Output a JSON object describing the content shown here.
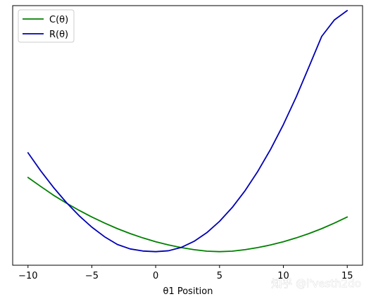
{
  "chart_data": {
    "type": "line",
    "title": "",
    "xlabel": "θ1 Position",
    "ylabel": "",
    "xlim": [
      -11.2,
      16.2
    ],
    "ylim": [
      -9,
      201
    ],
    "xticks": [
      -10,
      -5,
      0,
      5,
      10,
      15
    ],
    "xtick_labels": [
      "−10",
      "−5",
      "0",
      "5",
      "10",
      "15"
    ],
    "yticks_visible": false,
    "grid": false,
    "legend_position": "top-left",
    "series": [
      {
        "name": "C(θ)",
        "color": "#008000",
        "x": [
          -10,
          -9,
          -8,
          -7,
          -6,
          -5,
          -4,
          -3,
          -2,
          -1,
          0,
          1,
          2,
          3,
          4,
          5,
          6,
          7,
          8,
          9,
          10,
          11,
          12,
          13,
          14,
          15
        ],
        "y": [
          62,
          54.7,
          47.6,
          41.3,
          35.4,
          30,
          25.1,
          20.6,
          16.6,
          13.1,
          10,
          7.4,
          5.3,
          3.6,
          2.4,
          2,
          2.4,
          3.6,
          5.3,
          7.4,
          10,
          13.1,
          16.6,
          20.6,
          25.1,
          30
        ]
      },
      {
        "name": "R(θ)",
        "color": "#0000b4",
        "x": [
          -10,
          -9,
          -8,
          -7,
          -6,
          -5,
          -4,
          -3,
          -2,
          -1,
          0,
          1,
          2,
          3,
          4,
          5,
          6,
          7,
          8,
          9,
          10,
          11,
          12,
          13,
          14,
          15
        ],
        "y": [
          82,
          67.3,
          53.9,
          41.8,
          31.1,
          21.8,
          14,
          7.8,
          4.2,
          2.5,
          2,
          2.7,
          5.4,
          10.3,
          17.3,
          26.5,
          37.8,
          51.3,
          67,
          84.8,
          104.8,
          127,
          151.4,
          176.1,
          189.5,
          197
        ]
      }
    ]
  },
  "watermark": "知乎 @l'vesth2do"
}
